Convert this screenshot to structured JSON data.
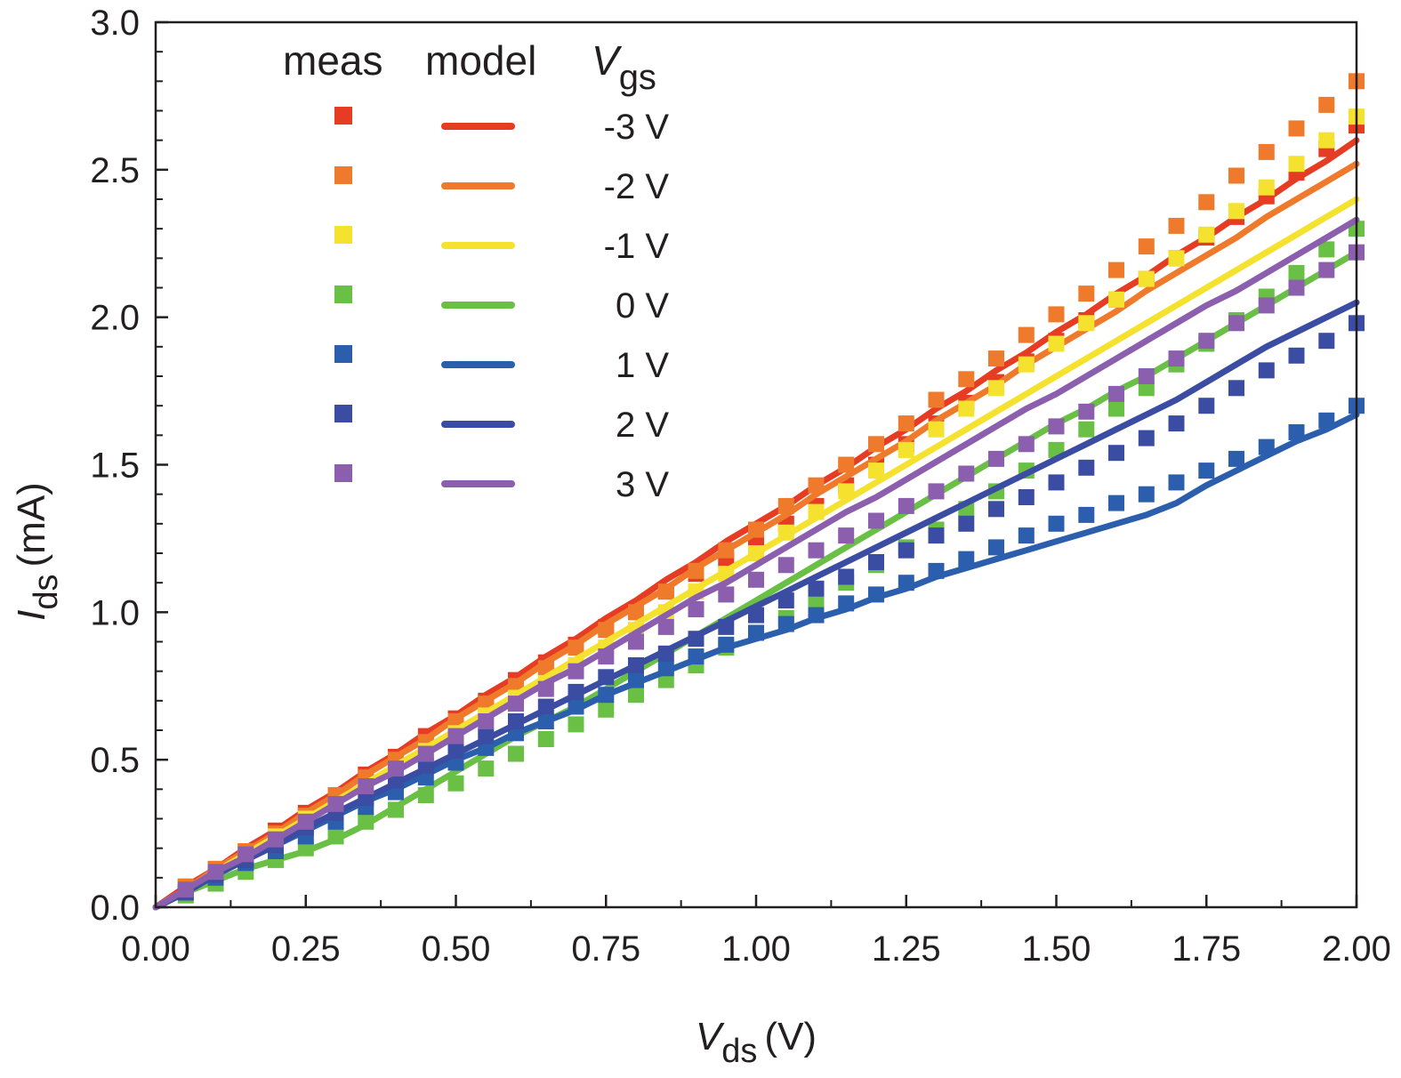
{
  "chart_data": {
    "type": "scatter",
    "xlabel": {
      "symbol": "V",
      "subscript": "ds",
      "unit": "(V)"
    },
    "ylabel": {
      "symbol": "I",
      "subscript": "ds",
      "unit": "(mA)"
    },
    "xlim": [
      0,
      2
    ],
    "ylim": [
      0,
      3
    ],
    "x_ticks": [
      "0.00",
      "0.25",
      "0.50",
      "0.75",
      "1.00",
      "1.25",
      "1.50",
      "1.75",
      "2.00"
    ],
    "y_ticks": [
      "0.0",
      "0.5",
      "1.0",
      "1.5",
      "2.0",
      "2.5",
      "3.0"
    ],
    "x_tick_values": [
      0,
      0.25,
      0.5,
      0.75,
      1.0,
      1.25,
      1.5,
      1.75,
      2.0
    ],
    "y_tick_values": [
      0,
      0.5,
      1.0,
      1.5,
      2.0,
      2.5,
      3.0
    ],
    "legend": {
      "meas_header": "meas",
      "model_header": "model",
      "vgs_symbol": "V",
      "vgs_subscript": "gs",
      "position": "top-left"
    },
    "x": [
      0,
      0.05,
      0.1,
      0.15,
      0.2,
      0.25,
      0.3,
      0.35,
      0.4,
      0.45,
      0.5,
      0.55,
      0.6,
      0.65,
      0.7,
      0.75,
      0.8,
      0.85,
      0.9,
      0.95,
      1.0,
      1.05,
      1.1,
      1.15,
      1.2,
      1.25,
      1.3,
      1.35,
      1.4,
      1.45,
      1.5,
      1.55,
      1.6,
      1.65,
      1.7,
      1.75,
      1.8,
      1.85,
      1.9,
      1.95,
      2.0
    ],
    "series": [
      {
        "name": "-3 V",
        "color": "#e63c23",
        "meas": [
          0.0,
          0.07,
          0.13,
          0.19,
          0.26,
          0.32,
          0.38,
          0.45,
          0.51,
          0.58,
          0.64,
          0.7,
          0.77,
          0.83,
          0.89,
          0.95,
          1.01,
          1.07,
          1.13,
          1.18,
          1.24,
          1.3,
          1.36,
          1.43,
          1.5,
          1.57,
          1.64,
          1.71,
          1.78,
          1.85,
          1.92,
          1.99,
          2.06,
          2.13,
          2.2,
          2.27,
          2.34,
          2.41,
          2.49,
          2.57,
          2.65
        ],
        "model": [
          0.0,
          0.07,
          0.13,
          0.2,
          0.26,
          0.33,
          0.39,
          0.46,
          0.52,
          0.59,
          0.65,
          0.72,
          0.78,
          0.85,
          0.91,
          0.98,
          1.04,
          1.11,
          1.17,
          1.24,
          1.3,
          1.36,
          1.43,
          1.49,
          1.56,
          1.62,
          1.69,
          1.75,
          1.82,
          1.88,
          1.95,
          2.01,
          2.08,
          2.14,
          2.21,
          2.27,
          2.34,
          2.4,
          2.47,
          2.53,
          2.6
        ]
      },
      {
        "name": "-2 V",
        "color": "#ef7a2b",
        "meas": [
          0.0,
          0.07,
          0.13,
          0.19,
          0.25,
          0.31,
          0.38,
          0.44,
          0.5,
          0.56,
          0.63,
          0.69,
          0.75,
          0.81,
          0.88,
          0.94,
          1.0,
          1.07,
          1.14,
          1.21,
          1.28,
          1.36,
          1.43,
          1.5,
          1.57,
          1.64,
          1.72,
          1.79,
          1.86,
          1.94,
          2.01,
          2.08,
          2.16,
          2.24,
          2.31,
          2.39,
          2.48,
          2.56,
          2.64,
          2.72,
          2.8
        ],
        "model": [
          0.0,
          0.06,
          0.13,
          0.19,
          0.25,
          0.32,
          0.38,
          0.45,
          0.51,
          0.57,
          0.64,
          0.7,
          0.76,
          0.83,
          0.89,
          0.96,
          1.02,
          1.08,
          1.15,
          1.21,
          1.27,
          1.33,
          1.4,
          1.46,
          1.52,
          1.58,
          1.65,
          1.71,
          1.77,
          1.84,
          1.9,
          1.96,
          2.02,
          2.09,
          2.15,
          2.21,
          2.27,
          2.34,
          2.4,
          2.46,
          2.52
        ]
      },
      {
        "name": "-1 V",
        "color": "#f4e22e",
        "meas": [
          0.0,
          0.06,
          0.12,
          0.18,
          0.24,
          0.3,
          0.35,
          0.41,
          0.47,
          0.53,
          0.59,
          0.65,
          0.71,
          0.76,
          0.82,
          0.88,
          0.94,
          1.0,
          1.07,
          1.13,
          1.2,
          1.27,
          1.34,
          1.41,
          1.48,
          1.55,
          1.62,
          1.69,
          1.76,
          1.84,
          1.91,
          1.98,
          2.06,
          2.13,
          2.2,
          2.28,
          2.36,
          2.44,
          2.52,
          2.6,
          2.68
        ],
        "model": [
          0.0,
          0.06,
          0.12,
          0.18,
          0.24,
          0.3,
          0.36,
          0.42,
          0.48,
          0.54,
          0.6,
          0.66,
          0.72,
          0.78,
          0.84,
          0.9,
          0.96,
          1.02,
          1.08,
          1.14,
          1.2,
          1.26,
          1.32,
          1.38,
          1.44,
          1.5,
          1.56,
          1.62,
          1.68,
          1.74,
          1.8,
          1.86,
          1.92,
          1.98,
          2.04,
          2.1,
          2.16,
          2.22,
          2.28,
          2.34,
          2.4
        ]
      },
      {
        "name": "0 V",
        "color": "#6abf45",
        "meas": [
          0.0,
          0.04,
          0.08,
          0.12,
          0.16,
          0.2,
          0.24,
          0.29,
          0.33,
          0.38,
          0.42,
          0.47,
          0.52,
          0.57,
          0.62,
          0.67,
          0.72,
          0.77,
          0.82,
          0.88,
          0.93,
          0.98,
          1.04,
          1.1,
          1.16,
          1.22,
          1.28,
          1.35,
          1.41,
          1.48,
          1.55,
          1.62,
          1.69,
          1.76,
          1.84,
          1.91,
          1.99,
          2.07,
          2.15,
          2.23,
          2.3
        ],
        "model": [
          0.0,
          0.05,
          0.09,
          0.13,
          0.16,
          0.19,
          0.23,
          0.28,
          0.34,
          0.4,
          0.46,
          0.52,
          0.58,
          0.63,
          0.68,
          0.74,
          0.8,
          0.86,
          0.92,
          0.98,
          1.04,
          1.1,
          1.16,
          1.22,
          1.28,
          1.34,
          1.4,
          1.46,
          1.52,
          1.58,
          1.64,
          1.69,
          1.75,
          1.8,
          1.86,
          1.92,
          1.98,
          2.04,
          2.1,
          2.16,
          2.22
        ]
      },
      {
        "name": "1 V",
        "color": "#2b5fad",
        "meas": [
          0.0,
          0.05,
          0.1,
          0.15,
          0.19,
          0.24,
          0.29,
          0.34,
          0.39,
          0.44,
          0.49,
          0.54,
          0.59,
          0.63,
          0.68,
          0.72,
          0.77,
          0.81,
          0.85,
          0.89,
          0.93,
          0.96,
          0.99,
          1.03,
          1.06,
          1.1,
          1.14,
          1.18,
          1.22,
          1.26,
          1.3,
          1.33,
          1.37,
          1.4,
          1.44,
          1.48,
          1.52,
          1.56,
          1.61,
          1.65,
          1.7
        ],
        "model": [
          0.0,
          0.05,
          0.11,
          0.16,
          0.21,
          0.26,
          0.31,
          0.36,
          0.4,
          0.45,
          0.5,
          0.54,
          0.59,
          0.63,
          0.67,
          0.72,
          0.76,
          0.8,
          0.84,
          0.88,
          0.91,
          0.94,
          0.98,
          1.01,
          1.05,
          1.08,
          1.12,
          1.15,
          1.18,
          1.21,
          1.24,
          1.27,
          1.3,
          1.33,
          1.37,
          1.43,
          1.48,
          1.53,
          1.58,
          1.62,
          1.67
        ]
      },
      {
        "name": "2 V",
        "color": "#3b4da2",
        "meas": [
          0.0,
          0.05,
          0.11,
          0.16,
          0.21,
          0.27,
          0.32,
          0.37,
          0.43,
          0.48,
          0.53,
          0.58,
          0.63,
          0.68,
          0.73,
          0.78,
          0.82,
          0.86,
          0.91,
          0.95,
          0.99,
          1.04,
          1.08,
          1.12,
          1.17,
          1.21,
          1.26,
          1.3,
          1.35,
          1.39,
          1.44,
          1.49,
          1.54,
          1.59,
          1.64,
          1.7,
          1.76,
          1.82,
          1.87,
          1.92,
          1.98
        ],
        "model": [
          0.0,
          0.05,
          0.11,
          0.16,
          0.21,
          0.27,
          0.32,
          0.37,
          0.42,
          0.47,
          0.52,
          0.57,
          0.62,
          0.67,
          0.72,
          0.77,
          0.82,
          0.87,
          0.92,
          0.97,
          1.02,
          1.07,
          1.12,
          1.17,
          1.22,
          1.27,
          1.32,
          1.37,
          1.42,
          1.47,
          1.52,
          1.57,
          1.62,
          1.67,
          1.72,
          1.78,
          1.84,
          1.9,
          1.95,
          2.0,
          2.05
        ]
      },
      {
        "name": "3 V",
        "color": "#8b5fae",
        "meas": [
          0.0,
          0.06,
          0.12,
          0.18,
          0.23,
          0.29,
          0.35,
          0.41,
          0.47,
          0.52,
          0.58,
          0.63,
          0.69,
          0.74,
          0.8,
          0.85,
          0.9,
          0.95,
          1.01,
          1.06,
          1.11,
          1.16,
          1.21,
          1.26,
          1.31,
          1.36,
          1.41,
          1.47,
          1.52,
          1.57,
          1.63,
          1.68,
          1.74,
          1.8,
          1.86,
          1.92,
          1.98,
          2.04,
          2.1,
          2.16,
          2.22
        ],
        "model": [
          0.0,
          0.06,
          0.12,
          0.17,
          0.23,
          0.29,
          0.35,
          0.41,
          0.46,
          0.52,
          0.58,
          0.64,
          0.7,
          0.76,
          0.81,
          0.87,
          0.93,
          0.99,
          1.05,
          1.1,
          1.16,
          1.22,
          1.28,
          1.34,
          1.39,
          1.45,
          1.51,
          1.57,
          1.63,
          1.69,
          1.74,
          1.8,
          1.86,
          1.92,
          1.98,
          2.04,
          2.09,
          2.15,
          2.21,
          2.27,
          2.33
        ]
      }
    ]
  }
}
